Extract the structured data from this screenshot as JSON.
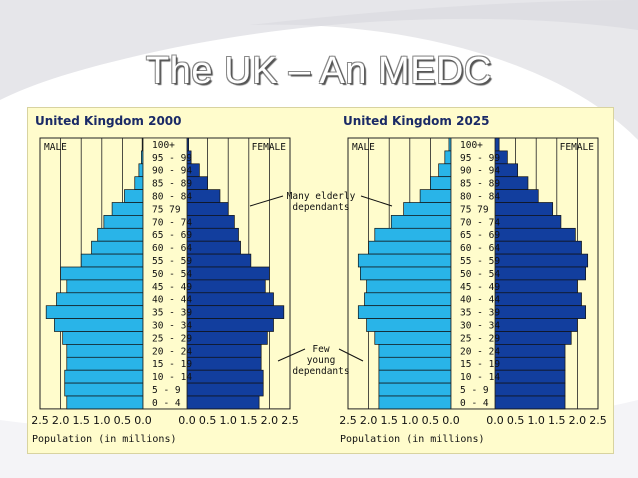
{
  "slide": {
    "title": "The UK – An MEDC"
  },
  "colors": {
    "male": "#29b4e8",
    "female": "#123e9e",
    "panel_bg": "#fffccc",
    "grid": "#222222",
    "title_text": "#1a2a66"
  },
  "chart_data": [
    {
      "type": "bar",
      "subtype": "population-pyramid",
      "title": "United Kingdom 2000",
      "male_label": "MALE",
      "female_label": "FEMALE",
      "xlabel": "Population (in millions)",
      "xlim": [
        0,
        2.5
      ],
      "x_ticks_left": [
        "2.5",
        "2.0",
        "1.5",
        "1.0",
        "0.5",
        "0.0"
      ],
      "x_ticks_right": [
        "0.0",
        "0.5",
        "1.0",
        "1.5",
        "2.0",
        "2.5"
      ],
      "categories": [
        "100+",
        "95 - 99",
        "90 - 94",
        "85 - 89",
        "80 - 84",
        "75  79",
        "70 - 74",
        "65 - 69",
        "60 - 64",
        "55 - 59",
        "50 - 54",
        "45 - 49",
        "40 - 44",
        "35 - 39",
        "30 - 34",
        "25 - 29",
        "20 - 24",
        "15 - 19",
        "10 - 14",
        "5 - 9",
        "0 - 4"
      ],
      "series": [
        {
          "name": "MALE",
          "values": [
            0.02,
            0.04,
            0.1,
            0.2,
            0.45,
            0.75,
            0.95,
            1.1,
            1.25,
            1.5,
            2.0,
            1.85,
            2.1,
            2.35,
            2.15,
            1.95,
            1.85,
            1.85,
            1.9,
            1.9,
            1.85
          ]
        },
        {
          "name": "FEMALE",
          "values": [
            0.04,
            0.1,
            0.3,
            0.5,
            0.8,
            1.0,
            1.15,
            1.25,
            1.3,
            1.55,
            2.0,
            1.9,
            2.1,
            2.35,
            2.1,
            1.95,
            1.8,
            1.8,
            1.85,
            1.85,
            1.75
          ]
        }
      ],
      "annotations": [
        {
          "lines": [
            "Many elderly",
            "dependants"
          ]
        },
        {
          "lines": [
            "Few",
            "young",
            "dependants"
          ]
        }
      ]
    },
    {
      "type": "bar",
      "subtype": "population-pyramid",
      "title": "United Kingdom 2025",
      "male_label": "MALE",
      "female_label": "FEMALE",
      "xlabel": "Population (in millions)",
      "xlim": [
        0,
        2.5
      ],
      "x_ticks_left": [
        "2.5",
        "2.0",
        "1.5",
        "1.0",
        "0.5",
        "0.0"
      ],
      "x_ticks_right": [
        "0.0",
        "0.5",
        "1.0",
        "1.5",
        "2.0",
        "2.5"
      ],
      "categories": [
        "100+",
        "95 - 99",
        "90 - 94",
        "85 - 89",
        "80 - 84",
        "75  79",
        "70 - 74",
        "65 - 69",
        "60 - 64",
        "55 - 59",
        "50 - 54",
        "45 - 49",
        "40 - 44",
        "35 - 39",
        "30 - 34",
        "25 - 29",
        "20 - 24",
        "15 - 19",
        "10 - 14",
        "5 - 9",
        "0 - 4"
      ],
      "series": [
        {
          "name": "MALE",
          "values": [
            0.05,
            0.15,
            0.3,
            0.5,
            0.75,
            1.15,
            1.45,
            1.85,
            2.0,
            2.25,
            2.2,
            2.05,
            2.1,
            2.25,
            2.05,
            1.85,
            1.75,
            1.75,
            1.75,
            1.75,
            1.75
          ]
        },
        {
          "name": "FEMALE",
          "values": [
            0.1,
            0.3,
            0.55,
            0.8,
            1.05,
            1.4,
            1.6,
            1.95,
            2.1,
            2.25,
            2.2,
            2.0,
            2.1,
            2.2,
            2.0,
            1.85,
            1.7,
            1.7,
            1.7,
            1.7,
            1.7
          ]
        }
      ]
    }
  ]
}
